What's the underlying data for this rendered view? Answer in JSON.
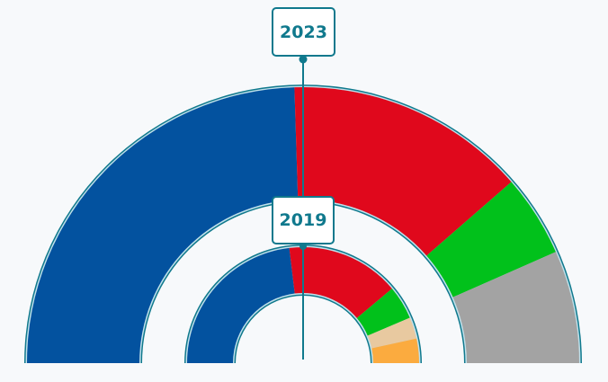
{
  "chart_data": {
    "type": "semicircle-donut",
    "charts": [
      {
        "year": "2023",
        "slices": [
          {
            "value": 49.0,
            "color": "#03529f"
          },
          {
            "value": 28.2,
            "color": "#e0081c"
          },
          {
            "value": 9.6,
            "color": "#01c11b"
          },
          {
            "value": 13.2,
            "color": "#a3a3a3"
          }
        ]
      },
      {
        "year": "2019",
        "slices": [
          {
            "value": 46.2,
            "color": "#03529f"
          },
          {
            "value": 31.6,
            "color": "#e0081c"
          },
          {
            "value": 9.4,
            "color": "#01c11b"
          },
          {
            "value": 6.0,
            "color": "#e8c9a0"
          },
          {
            "value": 6.8,
            "color": "#fbab3f"
          }
        ]
      }
    ]
  },
  "colors": {
    "outline": "#10798d",
    "inner_ring": "#bfe0ea",
    "label_text": "#10798d",
    "background": "#f7f9fb"
  }
}
